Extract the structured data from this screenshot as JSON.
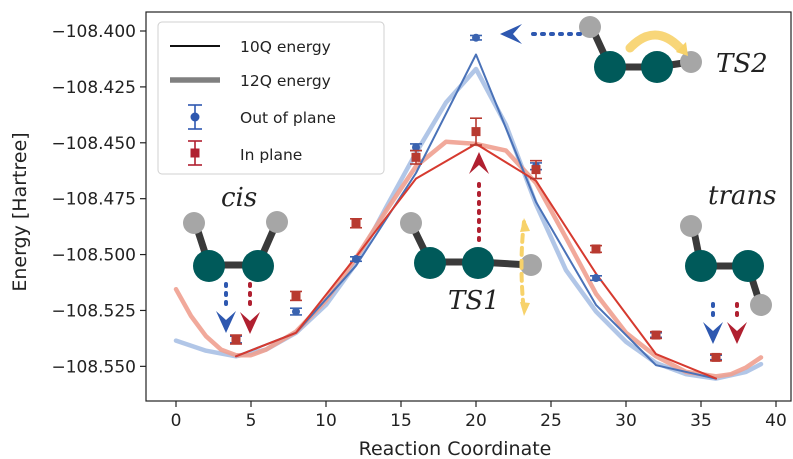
{
  "chart_data": {
    "type": "line",
    "xlabel": "Reaction Coordinate",
    "ylabel": "Energy [Hartree]",
    "xlim": [
      -2,
      41
    ],
    "ylim": [
      -108.5655,
      -108.3915
    ],
    "x_ticks": [
      0,
      5,
      10,
      15,
      20,
      25,
      30,
      35,
      40
    ],
    "x_tick_labels": [
      "0",
      "5",
      "10",
      "15",
      "20",
      "25",
      "30",
      "35",
      "40"
    ],
    "y_ticks": [
      -108.4,
      -108.425,
      -108.45,
      -108.475,
      -108.5,
      -108.525,
      -108.55
    ],
    "y_tick_labels": [
      "−108.400",
      "−108.425",
      "−108.450",
      "−108.475",
      "−108.500",
      "−108.525",
      "−108.550"
    ],
    "grid": false,
    "legend_position": "top-left",
    "legend": [
      {
        "label": "10Q energy",
        "style": "thin-line"
      },
      {
        "label": "12Q energy",
        "style": "thick-line"
      },
      {
        "label": "Out of plane",
        "style": "errorbar-circle"
      },
      {
        "label": "In plane",
        "style": "errorbar-square"
      }
    ],
    "series": [
      {
        "name": "10Q energy",
        "variant": "Out of plane",
        "style": "thin",
        "color": "#4a72b8",
        "x": [
          4,
          8,
          12,
          16,
          20,
          24,
          28,
          32,
          36
        ],
        "values": [
          -108.5455,
          -108.535,
          -108.505,
          -108.4635,
          -108.4105,
          -108.4765,
          -108.5225,
          -108.5495,
          -108.5555
        ]
      },
      {
        "name": "10Q energy",
        "variant": "In plane",
        "style": "thin",
        "color": "#d63a2f",
        "x": [
          4,
          8,
          12,
          16,
          20,
          24,
          28,
          32,
          36
        ],
        "values": [
          -108.5455,
          -108.535,
          -108.501,
          -108.466,
          -108.4505,
          -108.467,
          -108.5085,
          -108.5445,
          -108.5555
        ]
      },
      {
        "name": "12Q energy",
        "variant": "Out of plane",
        "style": "thick",
        "color": "#a8c0e4",
        "x": [
          0,
          2,
          4,
          6,
          8,
          10,
          12,
          14,
          16,
          18,
          20,
          22,
          24,
          26,
          28,
          30,
          32,
          34,
          36,
          38,
          39
        ],
        "values": [
          -108.5385,
          -108.543,
          -108.5455,
          -108.5425,
          -108.535,
          -108.5225,
          -108.504,
          -108.479,
          -108.4545,
          -108.432,
          -108.417,
          -108.442,
          -108.4775,
          -108.507,
          -108.5255,
          -108.539,
          -108.5485,
          -108.5535,
          -108.5555,
          -108.5525,
          -108.549
        ]
      },
      {
        "name": "12Q energy",
        "variant": "In plane",
        "style": "thick",
        "color": "#f0a090",
        "x": [
          0,
          1,
          2,
          3,
          4,
          5,
          6,
          8,
          10,
          12,
          14,
          16,
          18,
          20,
          22,
          24,
          26,
          28,
          30,
          32,
          34,
          36,
          37,
          38,
          39
        ],
        "values": [
          -108.5155,
          -108.5275,
          -108.5365,
          -108.5425,
          -108.545,
          -108.545,
          -108.5425,
          -108.5345,
          -108.5205,
          -108.5015,
          -108.4805,
          -108.4605,
          -108.4495,
          -108.4505,
          -108.4535,
          -108.468,
          -108.4925,
          -108.5175,
          -108.535,
          -108.5455,
          -108.5525,
          -108.5545,
          -108.5535,
          -108.5505,
          -108.546
        ]
      },
      {
        "name": "Out of plane",
        "style": "errorbar",
        "marker": "circle",
        "color": "#3a63b0",
        "x": [
          4,
          8,
          12,
          16,
          20,
          24,
          28,
          32,
          36
        ],
        "values": [
          -108.538,
          -108.5255,
          -108.502,
          -108.452,
          -108.403,
          -108.4605,
          -108.5105,
          -108.536,
          -108.546
        ],
        "errors": [
          0.0015,
          0.0015,
          0.001,
          0.0015,
          0.001,
          0.0015,
          0.001,
          0.001,
          0.001
        ]
      },
      {
        "name": "In plane",
        "style": "errorbar",
        "marker": "square",
        "color": "#b83a30",
        "x": [
          4,
          8,
          12,
          16,
          20,
          24,
          28,
          32,
          36
        ],
        "values": [
          -108.538,
          -108.5185,
          -108.486,
          -108.4565,
          -108.445,
          -108.462,
          -108.4975,
          -108.536,
          -108.546
        ],
        "errors": [
          0.002,
          0.002,
          0.002,
          0.003,
          0.006,
          0.004,
          0.0015,
          0.0015,
          0.0015
        ]
      }
    ],
    "annotations": [
      {
        "text": "cis",
        "style": "italic"
      },
      {
        "text": "trans",
        "style": "italic"
      },
      {
        "text": "TS1",
        "style": "italic"
      },
      {
        "text": "TS2",
        "style": "italic"
      }
    ]
  },
  "colors": {
    "atom_c": "#005a5a",
    "atom_h": "#a6a6a6",
    "bond": "#3a3a3a",
    "blue": "#2e58b0",
    "red": "#b02030",
    "yellow_arrow": "#f7d26a"
  }
}
